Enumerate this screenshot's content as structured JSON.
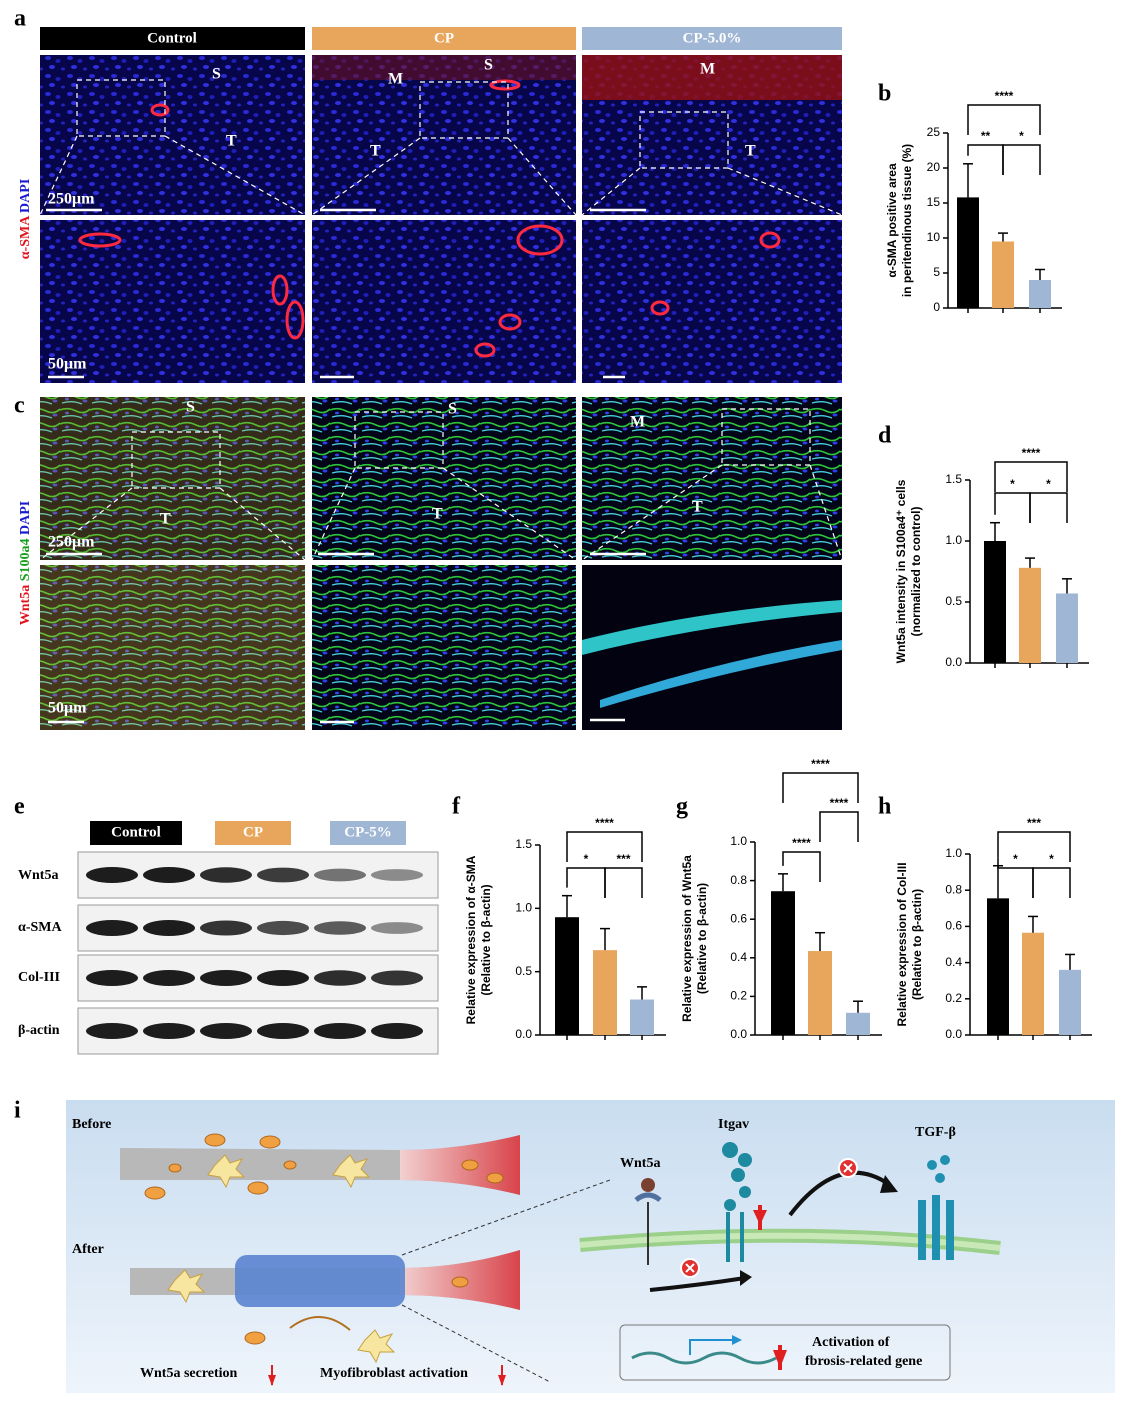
{
  "panel_a": {
    "label": "a",
    "headers": [
      "Control",
      "CP",
      "CP-5.0%"
    ],
    "stain": [
      "α-SMA",
      "DAPI"
    ],
    "tissue_labels": [
      "S",
      "T",
      "M",
      "S",
      "T",
      "M",
      "T"
    ],
    "scale_bars": [
      "250μm",
      "50μm"
    ]
  },
  "panel_c": {
    "label": "c",
    "stain": [
      "Wnt5a",
      "S100a4",
      "DAPI"
    ],
    "tissue_labels": [
      "S",
      "T",
      "S",
      "T",
      "M",
      "T"
    ],
    "scale_bars": [
      "250μm",
      "50μm"
    ]
  },
  "panel_e": {
    "label": "e",
    "headers": [
      "Control",
      "CP",
      "CP-5%"
    ],
    "rows": [
      "Wnt5a",
      "α-SMA",
      "Col-III",
      "β-actin"
    ]
  },
  "panel_i": {
    "label": "i",
    "texts": [
      "Before",
      "After",
      "Wnt5a secretion",
      "Myofibroblast activation",
      "Wnt5a",
      "Itgav",
      "TGF-β",
      "Activation of",
      "fbrosis-related gene"
    ]
  },
  "chart_data": [
    {
      "type": "bar",
      "panel": "b",
      "ylabel": [
        "α-SMA positive area",
        "in peritendinous tissue (%)"
      ],
      "values": [
        15.8,
        9.5,
        4.0
      ],
      "errors": [
        4.8,
        1.2,
        1.5
      ],
      "colors": [
        "#000000",
        "#e8a65c",
        "#9fb6d4"
      ],
      "ylim": [
        0,
        25
      ],
      "yticks": [
        0,
        5,
        10,
        15,
        20,
        25
      ],
      "significance": [
        {
          "pair": [
            0,
            1
          ],
          "label": "**"
        },
        {
          "pair": [
            1,
            2
          ],
          "label": "*"
        },
        {
          "pair": [
            0,
            2
          ],
          "label": "****"
        }
      ]
    },
    {
      "type": "bar",
      "panel": "d",
      "ylabel": [
        "Wnt5a intensity in S100a4⁺ cells",
        "(normalized to control)"
      ],
      "values": [
        1.0,
        0.78,
        0.57
      ],
      "errors": [
        0.15,
        0.08,
        0.12
      ],
      "colors": [
        "#000000",
        "#e8a65c",
        "#9fb6d4"
      ],
      "ylim": [
        0,
        1.5
      ],
      "yticks": [
        {
          "value": 0,
          "label": "0.0"
        },
        {
          "value": 0.5,
          "label": "0.5"
        },
        {
          "value": 1,
          "label": "1.0"
        },
        {
          "value": 1.5,
          "label": "1.5"
        }
      ],
      "significance": [
        {
          "pair": [
            0,
            1
          ],
          "label": "*"
        },
        {
          "pair": [
            1,
            2
          ],
          "label": "*"
        },
        {
          "pair": [
            0,
            2
          ],
          "label": "****"
        }
      ]
    },
    {
      "type": "bar",
      "panel": "f",
      "ylabel": [
        "Relative expression of α-SMA",
        "(Relative to β-actin)"
      ],
      "values": [
        0.93,
        0.67,
        0.28
      ],
      "errors": [
        0.17,
        0.17,
        0.1
      ],
      "colors": [
        "#000000",
        "#e8a65c",
        "#9fb6d4"
      ],
      "ylim": [
        0,
        1.5
      ],
      "yticks": [
        {
          "value": 0,
          "label": "0.0"
        },
        {
          "value": 0.5,
          "label": "0.5"
        },
        {
          "value": 1,
          "label": "1.0"
        },
        {
          "value": 1.5,
          "label": "1.5"
        }
      ],
      "significance": [
        {
          "pair": [
            0,
            1
          ],
          "label": "*"
        },
        {
          "pair": [
            1,
            2
          ],
          "label": "***"
        },
        {
          "pair": [
            0,
            2
          ],
          "label": "****"
        }
      ]
    },
    {
      "type": "bar",
      "panel": "g",
      "ylabel": [
        "Relative expression of Wnt5a",
        "(Relative to β-actin)"
      ],
      "values": [
        0.745,
        0.435,
        0.115
      ],
      "errors": [
        0.09,
        0.095,
        0.06
      ],
      "colors": [
        "#000000",
        "#e8a65c",
        "#9fb6d4"
      ],
      "ylim": [
        0,
        1
      ],
      "yticks": [
        {
          "value": 0,
          "label": "0.0"
        },
        0.2,
        0.4,
        0.6,
        0.8,
        {
          "value": 1,
          "label": "1.0"
        }
      ],
      "significance": [
        {
          "pair": [
            0,
            1
          ],
          "label": "****"
        },
        {
          "pair": [
            1,
            2
          ],
          "label": "****"
        },
        {
          "pair": [
            0,
            2
          ],
          "label": "****"
        }
      ]
    },
    {
      "type": "bar",
      "panel": "h",
      "ylabel": [
        "Relative expression of Col-III",
        "(Relative to β-actin)"
      ],
      "values": [
        0.755,
        0.565,
        0.36
      ],
      "errors": [
        0.18,
        0.09,
        0.085
      ],
      "colors": [
        "#000000",
        "#e8a65c",
        "#9fb6d4"
      ],
      "ylim": [
        0,
        1
      ],
      "yticks": [
        {
          "value": 0,
          "label": "0.0"
        },
        0.2,
        0.4,
        0.6,
        0.8,
        {
          "value": 1,
          "label": "1.0"
        }
      ],
      "significance": [
        {
          "pair": [
            0,
            1
          ],
          "label": "*"
        },
        {
          "pair": [
            1,
            2
          ],
          "label": "*"
        },
        {
          "pair": [
            0,
            2
          ],
          "label": "***"
        }
      ]
    }
  ]
}
